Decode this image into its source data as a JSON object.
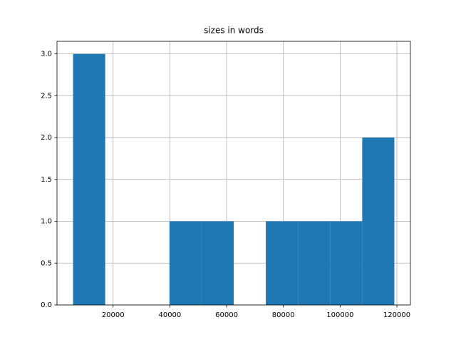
{
  "chart_data": {
    "type": "histogram",
    "title": "sizes in words",
    "bins": [
      5900,
      17220,
      28540,
      39860,
      51180,
      62500,
      73820,
      85140,
      96460,
      107780,
      119100
    ],
    "values": [
      3,
      0,
      0,
      1,
      1,
      0,
      1,
      1,
      1,
      2
    ],
    "color": "#1f77b4",
    "xlim": [
      240,
      124760
    ],
    "xticks": [
      20000,
      40000,
      60000,
      80000,
      100000,
      120000
    ],
    "ylim": [
      0,
      3.15
    ],
    "yticks": [
      {
        "value": 0,
        "label": "0.0"
      },
      {
        "value": 0.5,
        "label": "0.5"
      },
      {
        "value": 1,
        "label": "1.0"
      },
      {
        "value": 1.5,
        "label": "1.5"
      },
      {
        "value": 2,
        "label": "2.0"
      },
      {
        "value": 2.5,
        "label": "2.5"
      },
      {
        "value": 3,
        "label": "3.0"
      }
    ],
    "grid": true
  }
}
